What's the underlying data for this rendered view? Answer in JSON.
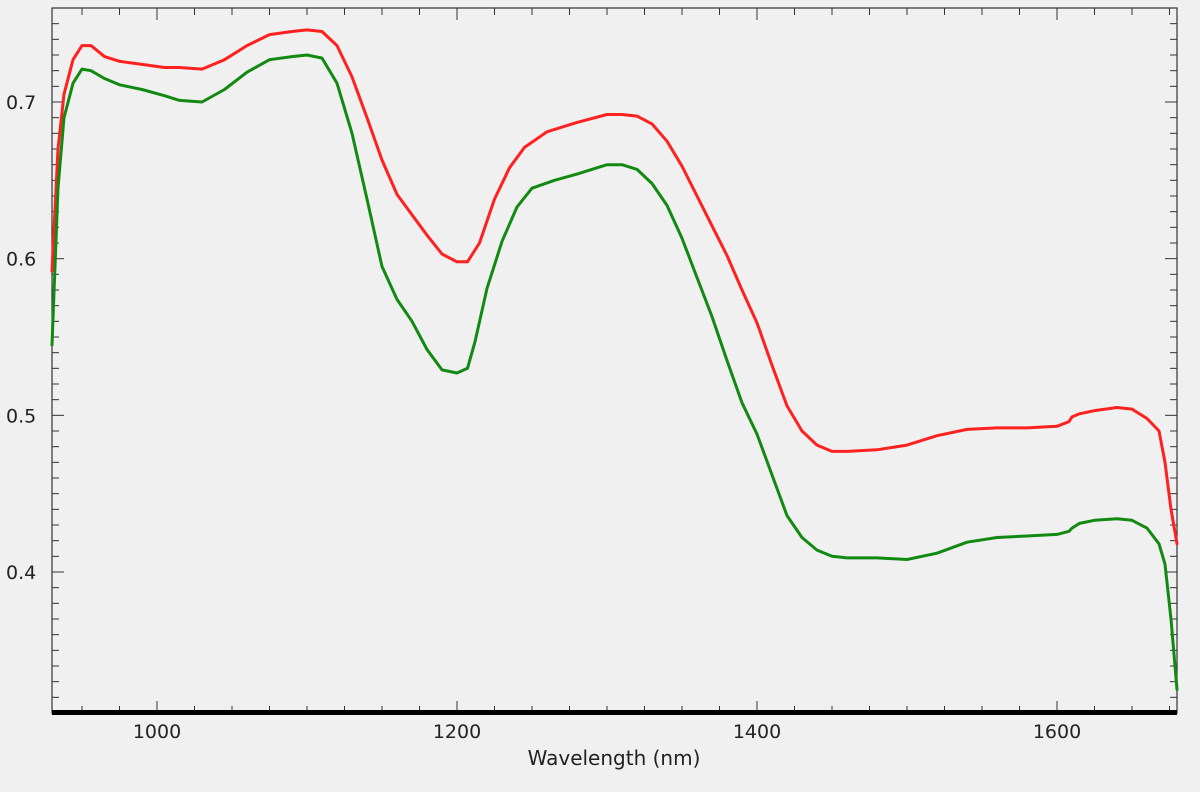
{
  "chart_data": {
    "type": "line",
    "title": "",
    "xlabel": "Wavelength (nm)",
    "ylabel": "",
    "xlim": [
      930,
      1680
    ],
    "ylim": [
      0.31,
      0.76
    ],
    "x_ticks": [
      1000,
      1200,
      1400,
      1600
    ],
    "x_tick_labels": [
      "1000",
      "1200",
      "1400",
      "1600"
    ],
    "y_ticks": [
      0.4,
      0.5,
      0.6,
      0.7
    ],
    "y_tick_labels": [
      "0.4",
      "0.5",
      "0.6",
      "0.7"
    ],
    "grid": false,
    "legend": "none",
    "series": [
      {
        "color": "#ff2020",
        "x": [
          930,
          934,
          938,
          944,
          950,
          956,
          965,
          975,
          990,
          1005,
          1015,
          1030,
          1045,
          1060,
          1075,
          1090,
          1100,
          1110,
          1120,
          1130,
          1140,
          1150,
          1160,
          1170,
          1180,
          1190,
          1200,
          1207,
          1215,
          1225,
          1235,
          1245,
          1260,
          1280,
          1300,
          1310,
          1320,
          1330,
          1340,
          1350,
          1360,
          1370,
          1380,
          1390,
          1400,
          1410,
          1420,
          1430,
          1440,
          1450,
          1460,
          1480,
          1500,
          1520,
          1540,
          1560,
          1580,
          1600,
          1608,
          1610,
          1615,
          1625,
          1640,
          1650,
          1660,
          1668,
          1672,
          1676,
          1680
        ],
        "y": [
          0.592,
          0.67,
          0.705,
          0.727,
          0.736,
          0.736,
          0.729,
          0.726,
          0.724,
          0.722,
          0.722,
          0.721,
          0.727,
          0.736,
          0.743,
          0.745,
          0.746,
          0.745,
          0.736,
          0.716,
          0.69,
          0.663,
          0.641,
          0.628,
          0.615,
          0.603,
          0.598,
          0.598,
          0.61,
          0.638,
          0.658,
          0.671,
          0.681,
          0.687,
          0.692,
          0.692,
          0.691,
          0.686,
          0.675,
          0.659,
          0.64,
          0.621,
          0.602,
          0.58,
          0.559,
          0.532,
          0.506,
          0.49,
          0.481,
          0.477,
          0.477,
          0.478,
          0.481,
          0.487,
          0.491,
          0.492,
          0.492,
          0.493,
          0.496,
          0.499,
          0.501,
          0.503,
          0.505,
          0.504,
          0.498,
          0.49,
          0.47,
          0.44,
          0.418
        ]
      },
      {
        "color": "#128a12",
        "x": [
          930,
          934,
          938,
          944,
          950,
          956,
          965,
          975,
          990,
          1005,
          1015,
          1030,
          1045,
          1060,
          1075,
          1090,
          1100,
          1110,
          1120,
          1130,
          1140,
          1150,
          1160,
          1170,
          1180,
          1190,
          1200,
          1207,
          1212,
          1220,
          1230,
          1240,
          1250,
          1265,
          1280,
          1300,
          1310,
          1320,
          1330,
          1340,
          1350,
          1360,
          1370,
          1380,
          1390,
          1400,
          1410,
          1420,
          1430,
          1440,
          1450,
          1460,
          1480,
          1500,
          1520,
          1540,
          1560,
          1580,
          1600,
          1608,
          1610,
          1615,
          1625,
          1640,
          1650,
          1660,
          1668,
          1672,
          1676,
          1680
        ],
        "y": [
          0.545,
          0.645,
          0.69,
          0.712,
          0.721,
          0.72,
          0.715,
          0.711,
          0.708,
          0.704,
          0.701,
          0.7,
          0.708,
          0.719,
          0.727,
          0.729,
          0.73,
          0.728,
          0.712,
          0.68,
          0.638,
          0.595,
          0.574,
          0.56,
          0.542,
          0.529,
          0.527,
          0.53,
          0.547,
          0.581,
          0.611,
          0.633,
          0.645,
          0.65,
          0.654,
          0.66,
          0.66,
          0.657,
          0.648,
          0.634,
          0.613,
          0.588,
          0.563,
          0.535,
          0.508,
          0.488,
          0.462,
          0.436,
          0.422,
          0.414,
          0.41,
          0.409,
          0.409,
          0.408,
          0.412,
          0.419,
          0.422,
          0.423,
          0.424,
          0.426,
          0.428,
          0.431,
          0.433,
          0.434,
          0.433,
          0.428,
          0.418,
          0.405,
          0.37,
          0.325
        ]
      }
    ]
  }
}
